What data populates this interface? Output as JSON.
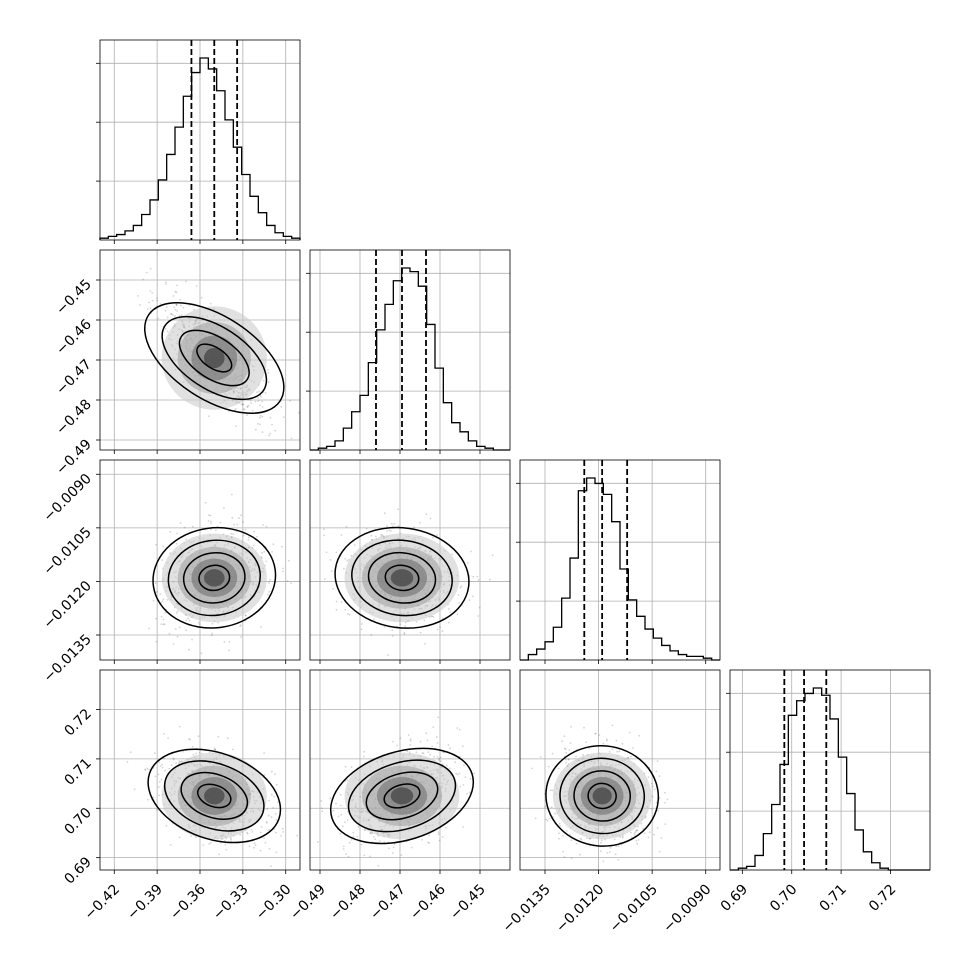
{
  "chart_data": {
    "type": "corner",
    "title": "",
    "parameters": [
      {
        "index": 0,
        "range": [
          -0.43,
          -0.29
        ],
        "ticks": [
          "-0.42",
          "-0.39",
          "-0.36",
          "-0.33",
          "-0.30"
        ],
        "tick_values": [
          -0.42,
          -0.39,
          -0.36,
          -0.33,
          -0.3
        ],
        "quantiles": [
          -0.366,
          -0.35,
          -0.334
        ],
        "median": -0.35
      },
      {
        "index": 1,
        "range": [
          -0.4925,
          -0.4425
        ],
        "ticks": [
          "-0.49",
          "-0.48",
          "-0.47",
          "-0.46",
          "-0.45"
        ],
        "tick_values": [
          -0.49,
          -0.48,
          -0.47,
          -0.46,
          -0.45
        ],
        "quantiles": [
          -0.476,
          -0.4695,
          -0.4635
        ],
        "median": -0.4695
      },
      {
        "index": 2,
        "range": [
          -0.0142,
          -0.0086
        ],
        "ticks": [
          "-0.0135",
          "-0.0120",
          "-0.0105",
          "-0.0090"
        ],
        "tick_values": [
          -0.0135,
          -0.012,
          -0.0105,
          -0.009
        ],
        "quantiles": [
          -0.0124,
          -0.0119,
          -0.0112
        ],
        "median": -0.0119
      },
      {
        "index": 3,
        "range": [
          0.6875,
          0.728
        ],
        "ticks": [
          "0.69",
          "0.70",
          "0.71",
          "0.72"
        ],
        "tick_values": [
          0.69,
          0.7,
          0.71,
          0.72
        ],
        "quantiles": [
          0.6985,
          0.7025,
          0.707
        ],
        "median": 0.7025
      }
    ],
    "histograms": [
      [
        0.01,
        0.02,
        0.03,
        0.05,
        0.08,
        0.14,
        0.22,
        0.33,
        0.47,
        0.62,
        0.79,
        0.92,
        1.0,
        0.94,
        0.82,
        0.66,
        0.51,
        0.36,
        0.24,
        0.15,
        0.08,
        0.04,
        0.02,
        0.01
      ],
      [
        0.0,
        0.01,
        0.02,
        0.05,
        0.12,
        0.21,
        0.3,
        0.48,
        0.66,
        0.8,
        0.93,
        1.0,
        0.98,
        0.9,
        0.69,
        0.45,
        0.26,
        0.15,
        0.1,
        0.05,
        0.02,
        0.01,
        0.0,
        0.0
      ],
      [
        0.0,
        0.03,
        0.06,
        0.1,
        0.18,
        0.34,
        0.56,
        0.93,
        1.0,
        0.97,
        0.91,
        0.76,
        0.5,
        0.33,
        0.24,
        0.17,
        0.12,
        0.08,
        0.05,
        0.03,
        0.02,
        0.02,
        0.01,
        0.0
      ],
      [
        0.0,
        0.01,
        0.02,
        0.08,
        0.2,
        0.36,
        0.58,
        0.85,
        0.93,
        0.97,
        1.0,
        0.96,
        0.83,
        0.62,
        0.42,
        0.22,
        0.1,
        0.04,
        0.01,
        0.0,
        0.0,
        0.0,
        0.0,
        0.0
      ]
    ],
    "correlations": {
      "1-0": -0.75,
      "2-0": 0.15,
      "2-1": -0.15,
      "3-0": -0.4,
      "3-1": 0.35,
      "3-2": -0.1
    },
    "contour_levels": [
      0.5,
      1.0,
      1.5,
      2.0
    ],
    "grid": true,
    "legend": "none"
  }
}
